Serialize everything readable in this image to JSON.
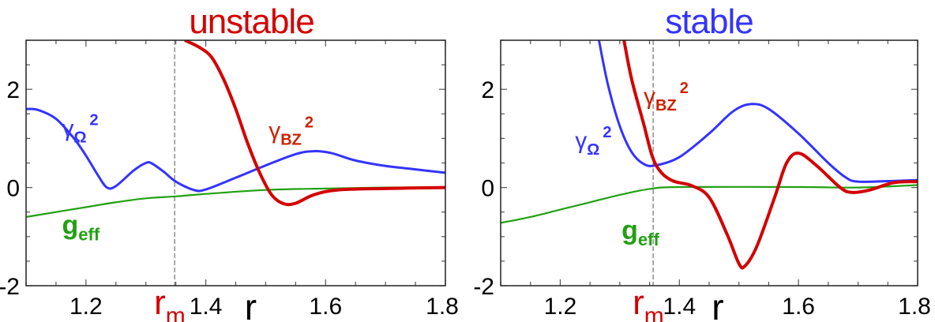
{
  "colors": {
    "blue": "#3333ff",
    "red": "#d40000",
    "green": "#22a012",
    "label_red": "#cc2200",
    "black": "#000000"
  },
  "chart_data": [
    {
      "type": "line",
      "title": "unstable",
      "title_color": "#d40000",
      "xlabel": "r",
      "marker_label": "r",
      "marker_sub": "m",
      "marker_x": 1.348,
      "xlim": [
        1.1,
        1.8
      ],
      "ylim": [
        -2,
        3
      ],
      "xticks": [
        1.2,
        1.4,
        1.6,
        1.8
      ],
      "xtick_labels": [
        "1.2",
        "1.4",
        "1.6",
        "1.8"
      ],
      "yticks": [
        -2,
        0,
        2
      ],
      "ytick_labels": [
        "-2",
        "0",
        "2"
      ],
      "series": [
        {
          "name": "gamma_Omega^2",
          "label": "γ",
          "sub": "Ω",
          "sup": "2",
          "color": "#3333ff",
          "label_at": [
            1.16,
            1.05
          ],
          "points": [
            [
              1.1,
              1.6
            ],
            [
              1.12,
              1.58
            ],
            [
              1.15,
              1.4
            ],
            [
              1.18,
              1.0
            ],
            [
              1.2,
              0.65
            ],
            [
              1.22,
              0.25
            ],
            [
              1.235,
              0.0
            ],
            [
              1.25,
              0.03
            ],
            [
              1.28,
              0.35
            ],
            [
              1.3,
              0.5
            ],
            [
              1.31,
              0.49
            ],
            [
              1.33,
              0.32
            ],
            [
              1.35,
              0.12
            ],
            [
              1.38,
              -0.05
            ],
            [
              1.4,
              -0.04
            ],
            [
              1.45,
              0.2
            ],
            [
              1.5,
              0.45
            ],
            [
              1.55,
              0.68
            ],
            [
              1.58,
              0.74
            ],
            [
              1.61,
              0.7
            ],
            [
              1.65,
              0.55
            ],
            [
              1.7,
              0.44
            ],
            [
              1.75,
              0.37
            ],
            [
              1.8,
              0.3
            ]
          ]
        },
        {
          "name": "gamma_BZ^2",
          "label": "γ",
          "sub": "BZ",
          "sup": "2",
          "color": "#d40000",
          "label_at": [
            1.505,
            1.0
          ],
          "points": [
            [
              1.365,
              3.0
            ],
            [
              1.39,
              2.85
            ],
            [
              1.41,
              2.65
            ],
            [
              1.43,
              2.2
            ],
            [
              1.45,
              1.6
            ],
            [
              1.47,
              0.9
            ],
            [
              1.49,
              0.3
            ],
            [
              1.51,
              -0.15
            ],
            [
              1.53,
              -0.33
            ],
            [
              1.55,
              -0.32
            ],
            [
              1.58,
              -0.15
            ],
            [
              1.62,
              -0.05
            ],
            [
              1.7,
              -0.02
            ],
            [
              1.8,
              0.0
            ]
          ]
        },
        {
          "name": "g_eff",
          "label": "g",
          "sub": "eff",
          "sup": "",
          "color": "#22a012",
          "label_at": [
            1.16,
            -0.95
          ],
          "points": [
            [
              1.1,
              -0.6
            ],
            [
              1.15,
              -0.5
            ],
            [
              1.2,
              -0.4
            ],
            [
              1.25,
              -0.3
            ],
            [
              1.3,
              -0.22
            ],
            [
              1.35,
              -0.18
            ],
            [
              1.4,
              -0.13
            ],
            [
              1.5,
              -0.05
            ],
            [
              1.6,
              -0.02
            ],
            [
              1.7,
              0.0
            ],
            [
              1.8,
              0.0
            ]
          ]
        }
      ]
    },
    {
      "type": "line",
      "title": "stable",
      "title_color": "#3333ff",
      "xlabel": "r",
      "marker_label": "r",
      "marker_sub": "m",
      "marker_x": 1.356,
      "xlim": [
        1.1,
        1.8
      ],
      "ylim": [
        -2,
        3
      ],
      "xticks": [
        1.2,
        1.4,
        1.6,
        1.8
      ],
      "xtick_labels": [
        "1.2",
        "1.4",
        "1.6",
        "1.8"
      ],
      "yticks": [
        -2,
        0,
        2
      ],
      "ytick_labels": [
        "-2",
        "0",
        "2"
      ],
      "series": [
        {
          "name": "gamma_Omega^2",
          "label": "γ",
          "sub": "Ω",
          "sup": "2",
          "color": "#3333ff",
          "label_at": [
            1.225,
            0.8
          ],
          "points": [
            [
              1.265,
              3.0
            ],
            [
              1.28,
              2.1
            ],
            [
              1.3,
              1.25
            ],
            [
              1.32,
              0.72
            ],
            [
              1.34,
              0.48
            ],
            [
              1.36,
              0.45
            ],
            [
              1.4,
              0.62
            ],
            [
              1.45,
              1.1
            ],
            [
              1.49,
              1.55
            ],
            [
              1.52,
              1.7
            ],
            [
              1.55,
              1.6
            ],
            [
              1.6,
              1.1
            ],
            [
              1.65,
              0.5
            ],
            [
              1.68,
              0.2
            ],
            [
              1.7,
              0.12
            ],
            [
              1.75,
              0.13
            ],
            [
              1.8,
              0.15
            ]
          ]
        },
        {
          "name": "gamma_BZ^2",
          "label": "γ",
          "sub": "BZ",
          "sup": "2",
          "color": "#d40000",
          "label_at": [
            1.34,
            1.7
          ],
          "points": [
            [
              1.307,
              3.0
            ],
            [
              1.32,
              2.2
            ],
            [
              1.34,
              1.3
            ],
            [
              1.355,
              0.62
            ],
            [
              1.37,
              0.3
            ],
            [
              1.39,
              0.13
            ],
            [
              1.42,
              0.04
            ],
            [
              1.45,
              -0.2
            ],
            [
              1.48,
              -0.95
            ],
            [
              1.5,
              -1.55
            ],
            [
              1.51,
              -1.6
            ],
            [
              1.53,
              -1.2
            ],
            [
              1.56,
              -0.2
            ],
            [
              1.58,
              0.5
            ],
            [
              1.6,
              0.7
            ],
            [
              1.63,
              0.45
            ],
            [
              1.67,
              0.0
            ],
            [
              1.69,
              -0.1
            ],
            [
              1.72,
              -0.05
            ],
            [
              1.76,
              0.1
            ],
            [
              1.8,
              0.12
            ]
          ]
        },
        {
          "name": "g_eff",
          "label": "g",
          "sub": "eff",
          "sup": "",
          "color": "#22a012",
          "label_at": [
            1.303,
            -1.05
          ],
          "points": [
            [
              1.1,
              -0.72
            ],
            [
              1.15,
              -0.6
            ],
            [
              1.2,
              -0.45
            ],
            [
              1.25,
              -0.3
            ],
            [
              1.3,
              -0.15
            ],
            [
              1.35,
              -0.03
            ],
            [
              1.4,
              0.01
            ],
            [
              1.6,
              0.01
            ],
            [
              1.7,
              0.0
            ],
            [
              1.8,
              0.05
            ]
          ]
        }
      ]
    }
  ]
}
